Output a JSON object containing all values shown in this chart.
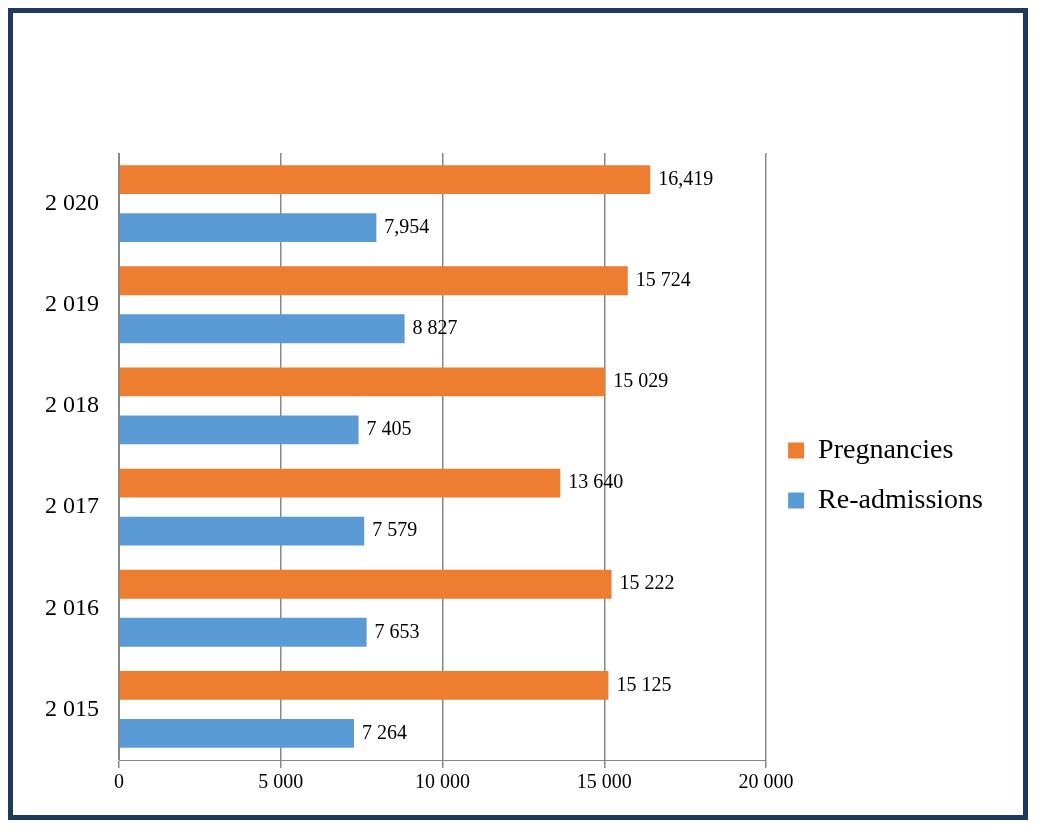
{
  "chart_data": {
    "type": "bar",
    "orientation": "horizontal",
    "categories": [
      "2 020",
      "2 019",
      "2 018",
      "2 017",
      "2 016",
      "2 015"
    ],
    "series": [
      {
        "name": "Pregnancies",
        "color": "#ed7d31",
        "values": [
          16419,
          15724,
          15029,
          13640,
          15222,
          15125
        ],
        "value_labels": [
          "16,419",
          "15 724",
          "15 029",
          "13 640",
          "15 222",
          "15 125"
        ]
      },
      {
        "name": "Re-admissions",
        "color": "#5b9bd5",
        "values": [
          7954,
          8827,
          7405,
          7579,
          7653,
          7264
        ],
        "value_labels": [
          "7,954",
          "8 827",
          "7 405",
          "7 579",
          "7 653",
          "7 264"
        ]
      }
    ],
    "xlim": [
      0,
      20000
    ],
    "xticks": [
      0,
      {
        "value": 5000,
        "label": "5 000"
      },
      {
        "value": 10000,
        "label": "10 000"
      },
      {
        "value": 15000,
        "label": "15 000"
      },
      {
        "value": 20000,
        "label": "20 000"
      }
    ],
    "grid": "x",
    "legend": "right"
  }
}
